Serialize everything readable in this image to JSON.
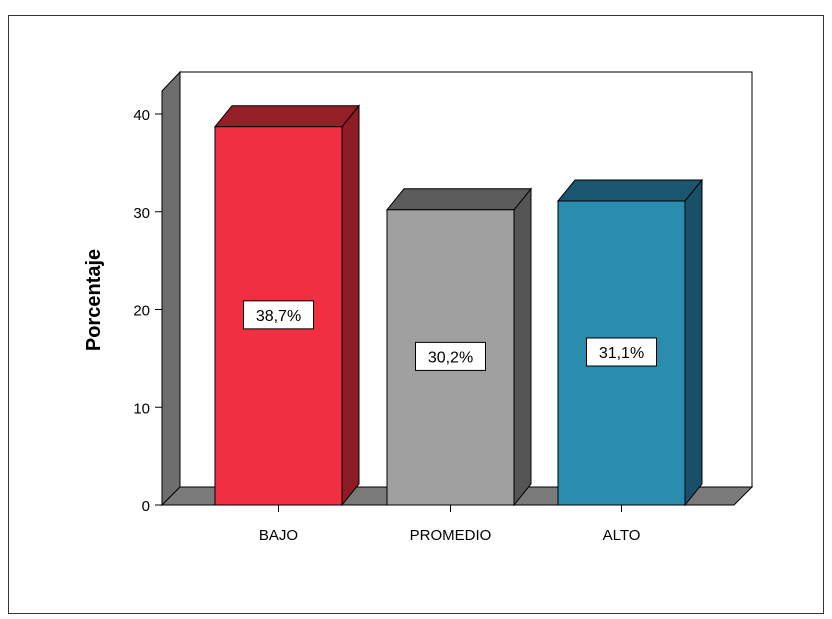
{
  "chart_data": {
    "type": "bar",
    "categories": [
      "BAJO",
      "PROMEDIO",
      "ALTO"
    ],
    "values": [
      38.7,
      30.2,
      31.1
    ],
    "data_labels": [
      "38,7%",
      "30,2%",
      "31,1%"
    ],
    "ylabel": "Porcentaje",
    "xlabel": "",
    "title": "",
    "ylim": [
      0,
      40
    ],
    "yticks": [
      "0",
      "10",
      "20",
      "30",
      "40"
    ],
    "grid": false,
    "style": "3d",
    "colors": {
      "bars": [
        "#f03040",
        "#a0a0a0",
        "#2a8cae"
      ],
      "bar_tops": [
        "#941f27",
        "#5c5c5c",
        "#1a5670"
      ],
      "bar_sides": [
        "#8c1d24",
        "#555555",
        "#18506a"
      ],
      "wall": "#ffffff",
      "wall_side": "#6e6e6e",
      "floor": "#7a7a7a"
    }
  }
}
